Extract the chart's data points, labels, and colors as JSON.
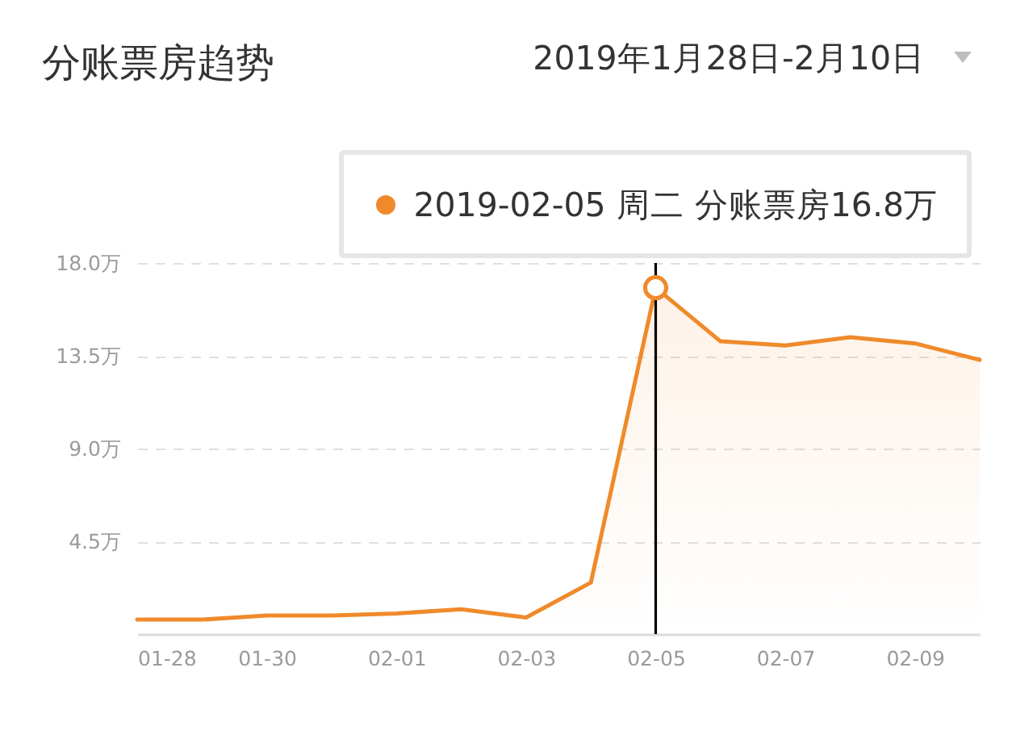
{
  "chart_data": {
    "type": "area",
    "title": "分账票房趋势",
    "subtitle": "2019年1月28日-2月10日",
    "x": [
      "2019-01-28",
      "2019-01-29",
      "2019-01-30",
      "2019-01-31",
      "2019-02-01",
      "2019-02-02",
      "2019-02-03",
      "2019-02-04",
      "2019-02-05",
      "2019-02-06",
      "2019-02-07",
      "2019-02-08",
      "2019-02-09",
      "2019-02-10"
    ],
    "series": [
      {
        "color": "#ef8a2b",
        "values": [
          0.7,
          0.7,
          0.9,
          0.9,
          1.0,
          1.2,
          0.8,
          2.5,
          16.8,
          14.2,
          14.0,
          14.4,
          14.1,
          13.3
        ]
      },
      {
        "type": "scatter",
        "color": "#ef8a2b",
        "x": [
          "2019-02-05"
        ],
        "values": [
          16.8
        ]
      }
    ],
    "xlim": [
      "2019-01-28",
      "2019-02-10"
    ],
    "xticks": [
      {
        "value": "2019-01-28",
        "label": "01-28"
      },
      {
        "value": "2019-01-30",
        "label": "01-30"
      },
      {
        "value": "2019-02-01",
        "label": "02-01"
      },
      {
        "value": "2019-02-03",
        "label": "02-03"
      },
      {
        "value": "2019-02-05",
        "label": "02-05"
      },
      {
        "value": "2019-02-07",
        "label": "02-07"
      },
      {
        "value": "2019-02-09",
        "label": "02-09"
      }
    ],
    "ylim": [
      0,
      18
    ],
    "yticks": [
      {
        "value": 4.5,
        "label": "4.5万"
      },
      {
        "value": 9,
        "label": "9.0万"
      },
      {
        "value": 13.5,
        "label": "13.5万"
      },
      {
        "value": 18,
        "label": "18.0万"
      }
    ],
    "grid": "y",
    "ref_lines": [
      {
        "axis": "x",
        "value": "2019-02-05",
        "color": "#000000"
      }
    ],
    "annotations": [
      {
        "text": "2019-02-05 周二 分账票房16.8万",
        "x": "2019-02-05",
        "y": 16.8
      }
    ]
  }
}
